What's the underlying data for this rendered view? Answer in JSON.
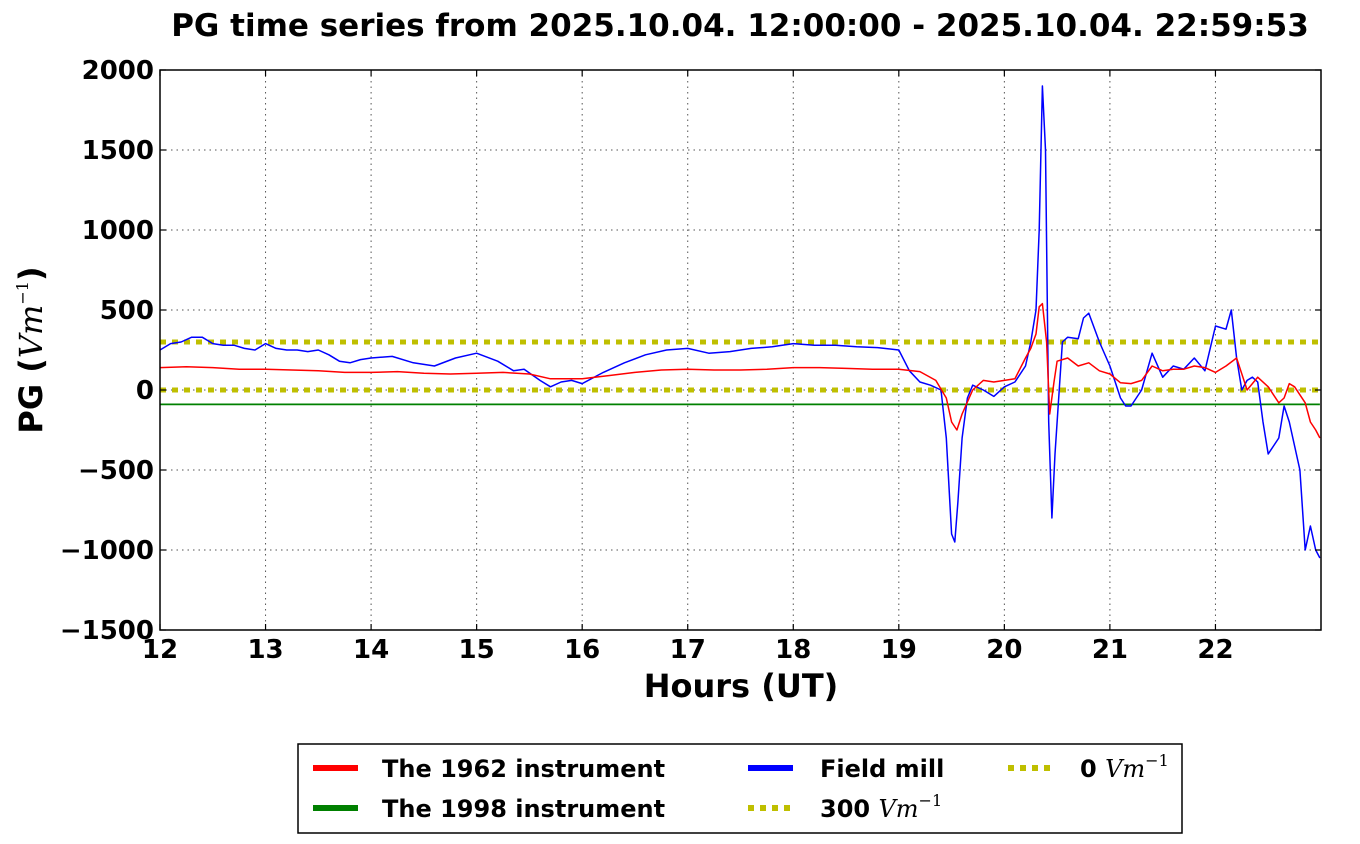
{
  "chart_data": {
    "type": "line",
    "title": "PG time series from 2025.10.04. 12:00:00 - 2025.10.04. 22:59:53",
    "xlabel": "Hours (UT)",
    "ylabel": {
      "prefix": "PG (",
      "unit_base": "Vm",
      "unit_exp": "−1",
      "suffix": ")"
    },
    "xlim": [
      12,
      23
    ],
    "ylim": [
      -1500,
      2000
    ],
    "grid": true,
    "xticks": [
      "12",
      "13",
      "14",
      "15",
      "16",
      "17",
      "18",
      "19",
      "20",
      "21",
      "22"
    ],
    "yticks": [
      "2000",
      "1500",
      "1000",
      "500",
      "0",
      "−500",
      "−1000",
      "−1500"
    ],
    "xtick_values": [
      12,
      13,
      14,
      15,
      16,
      17,
      18,
      19,
      20,
      21,
      22
    ],
    "ytick_values": [
      2000,
      1500,
      1000,
      500,
      0,
      -500,
      -1000,
      -1500
    ],
    "legend": {
      "placement": "bottom-center",
      "entries": [
        {
          "key": "red",
          "label": "The 1962 instrument"
        },
        {
          "key": "green",
          "label": "The 1998 instrument"
        },
        {
          "key": "blue",
          "label": "Field mill"
        },
        {
          "key": "y300",
          "label": "300 ",
          "unit_base": "Vm",
          "unit_exp": "−1"
        },
        {
          "key": "y0",
          "label": "0 ",
          "unit_base": "Vm",
          "unit_exp": "−1"
        }
      ]
    },
    "colors": {
      "red": "#ff0000",
      "green": "#008000",
      "blue": "#0000ff",
      "ref": "#bfbf00"
    },
    "series": [
      {
        "key": "red",
        "label": "The 1962 instrument",
        "color": "#ff0000",
        "x": [
          12.0,
          12.25,
          12.5,
          12.75,
          13.0,
          13.25,
          13.5,
          13.75,
          14.0,
          14.25,
          14.5,
          14.75,
          15.0,
          15.25,
          15.5,
          15.7,
          16.0,
          16.25,
          16.5,
          16.75,
          17.0,
          17.25,
          17.5,
          17.75,
          18.0,
          18.25,
          18.5,
          18.75,
          19.0,
          19.2,
          19.35,
          19.45,
          19.5,
          19.55,
          19.6,
          19.7,
          19.8,
          19.9,
          20.0,
          20.1,
          20.2,
          20.25,
          20.3,
          20.33,
          20.36,
          20.4,
          20.43,
          20.47,
          20.5,
          20.55,
          20.6,
          20.7,
          20.8,
          20.9,
          21.0,
          21.1,
          21.2,
          21.3,
          21.4,
          21.5,
          21.6,
          21.7,
          21.8,
          21.9,
          22.0,
          22.1,
          22.2,
          22.3,
          22.4,
          22.5,
          22.55,
          22.6,
          22.65,
          22.7,
          22.75,
          22.8,
          22.85,
          22.9,
          22.95,
          22.99
        ],
        "y": [
          140,
          145,
          140,
          130,
          130,
          125,
          120,
          110,
          110,
          115,
          105,
          100,
          105,
          110,
          100,
          70,
          70,
          90,
          110,
          125,
          130,
          125,
          125,
          130,
          140,
          140,
          135,
          130,
          130,
          115,
          60,
          -50,
          -200,
          -250,
          -150,
          0,
          60,
          50,
          60,
          70,
          200,
          260,
          350,
          520,
          540,
          300,
          -150,
          50,
          180,
          190,
          200,
          150,
          170,
          120,
          100,
          45,
          40,
          60,
          150,
          120,
          130,
          130,
          150,
          140,
          110,
          150,
          200,
          0,
          80,
          20,
          -30,
          -80,
          -50,
          40,
          20,
          -30,
          -80,
          -200,
          -250,
          -300
        ]
      },
      {
        "key": "green",
        "label": "The 1998 instrument",
        "color": "#008000",
        "x": [
          12.0,
          22.99
        ],
        "y": [
          -90,
          -90
        ]
      },
      {
        "key": "blue",
        "label": "Field mill",
        "color": "#0000ff",
        "x": [
          12.0,
          12.1,
          12.2,
          12.3,
          12.4,
          12.5,
          12.6,
          12.7,
          12.8,
          12.9,
          13.0,
          13.1,
          13.2,
          13.3,
          13.4,
          13.5,
          13.6,
          13.7,
          13.8,
          13.9,
          14.0,
          14.2,
          14.4,
          14.6,
          14.8,
          15.0,
          15.2,
          15.35,
          15.45,
          15.6,
          15.7,
          15.8,
          15.9,
          16.0,
          16.2,
          16.4,
          16.6,
          16.8,
          17.0,
          17.2,
          17.4,
          17.6,
          17.8,
          18.0,
          18.2,
          18.4,
          18.6,
          18.8,
          19.0,
          19.1,
          19.2,
          19.3,
          19.4,
          19.45,
          19.5,
          19.53,
          19.56,
          19.6,
          19.65,
          19.7,
          19.8,
          19.9,
          20.0,
          20.1,
          20.2,
          20.25,
          20.3,
          20.33,
          20.36,
          20.39,
          20.42,
          20.45,
          20.48,
          20.55,
          20.6,
          20.7,
          20.75,
          20.8,
          20.9,
          21.0,
          21.1,
          21.15,
          21.2,
          21.3,
          21.4,
          21.5,
          21.6,
          21.7,
          21.8,
          21.9,
          22.0,
          22.1,
          22.15,
          22.2,
          22.25,
          22.3,
          22.35,
          22.4,
          22.45,
          22.5,
          22.55,
          22.6,
          22.65,
          22.7,
          22.75,
          22.8,
          22.85,
          22.9,
          22.95,
          22.99
        ],
        "y": [
          250,
          290,
          300,
          330,
          330,
          290,
          280,
          280,
          260,
          250,
          290,
          260,
          250,
          250,
          240,
          250,
          220,
          180,
          170,
          190,
          200,
          210,
          170,
          150,
          200,
          230,
          180,
          120,
          130,
          60,
          20,
          50,
          60,
          40,
          110,
          170,
          220,
          250,
          260,
          230,
          240,
          260,
          270,
          290,
          280,
          280,
          270,
          265,
          250,
          120,
          50,
          30,
          0,
          -300,
          -900,
          -950,
          -700,
          -300,
          -50,
          30,
          0,
          -40,
          20,
          50,
          150,
          300,
          500,
          1000,
          1900,
          1500,
          -200,
          -800,
          -400,
          300,
          330,
          320,
          450,
          480,
          300,
          150,
          -50,
          -100,
          -100,
          0,
          230,
          80,
          150,
          130,
          200,
          120,
          400,
          380,
          500,
          200,
          0,
          60,
          80,
          50,
          -200,
          -400,
          -350,
          -300,
          -100,
          -200,
          -350,
          -500,
          -1000,
          -850,
          -1000,
          -1050
        ]
      },
      {
        "key": "y300",
        "label": "300 Vm−1",
        "color": "#bfbf00",
        "x": [
          12.0,
          22.99
        ],
        "y": [
          300,
          300
        ]
      },
      {
        "key": "y0",
        "label": "0 Vm−1",
        "color": "#bfbf00",
        "x": [
          12.0,
          22.99
        ],
        "y": [
          0,
          0
        ]
      }
    ]
  }
}
